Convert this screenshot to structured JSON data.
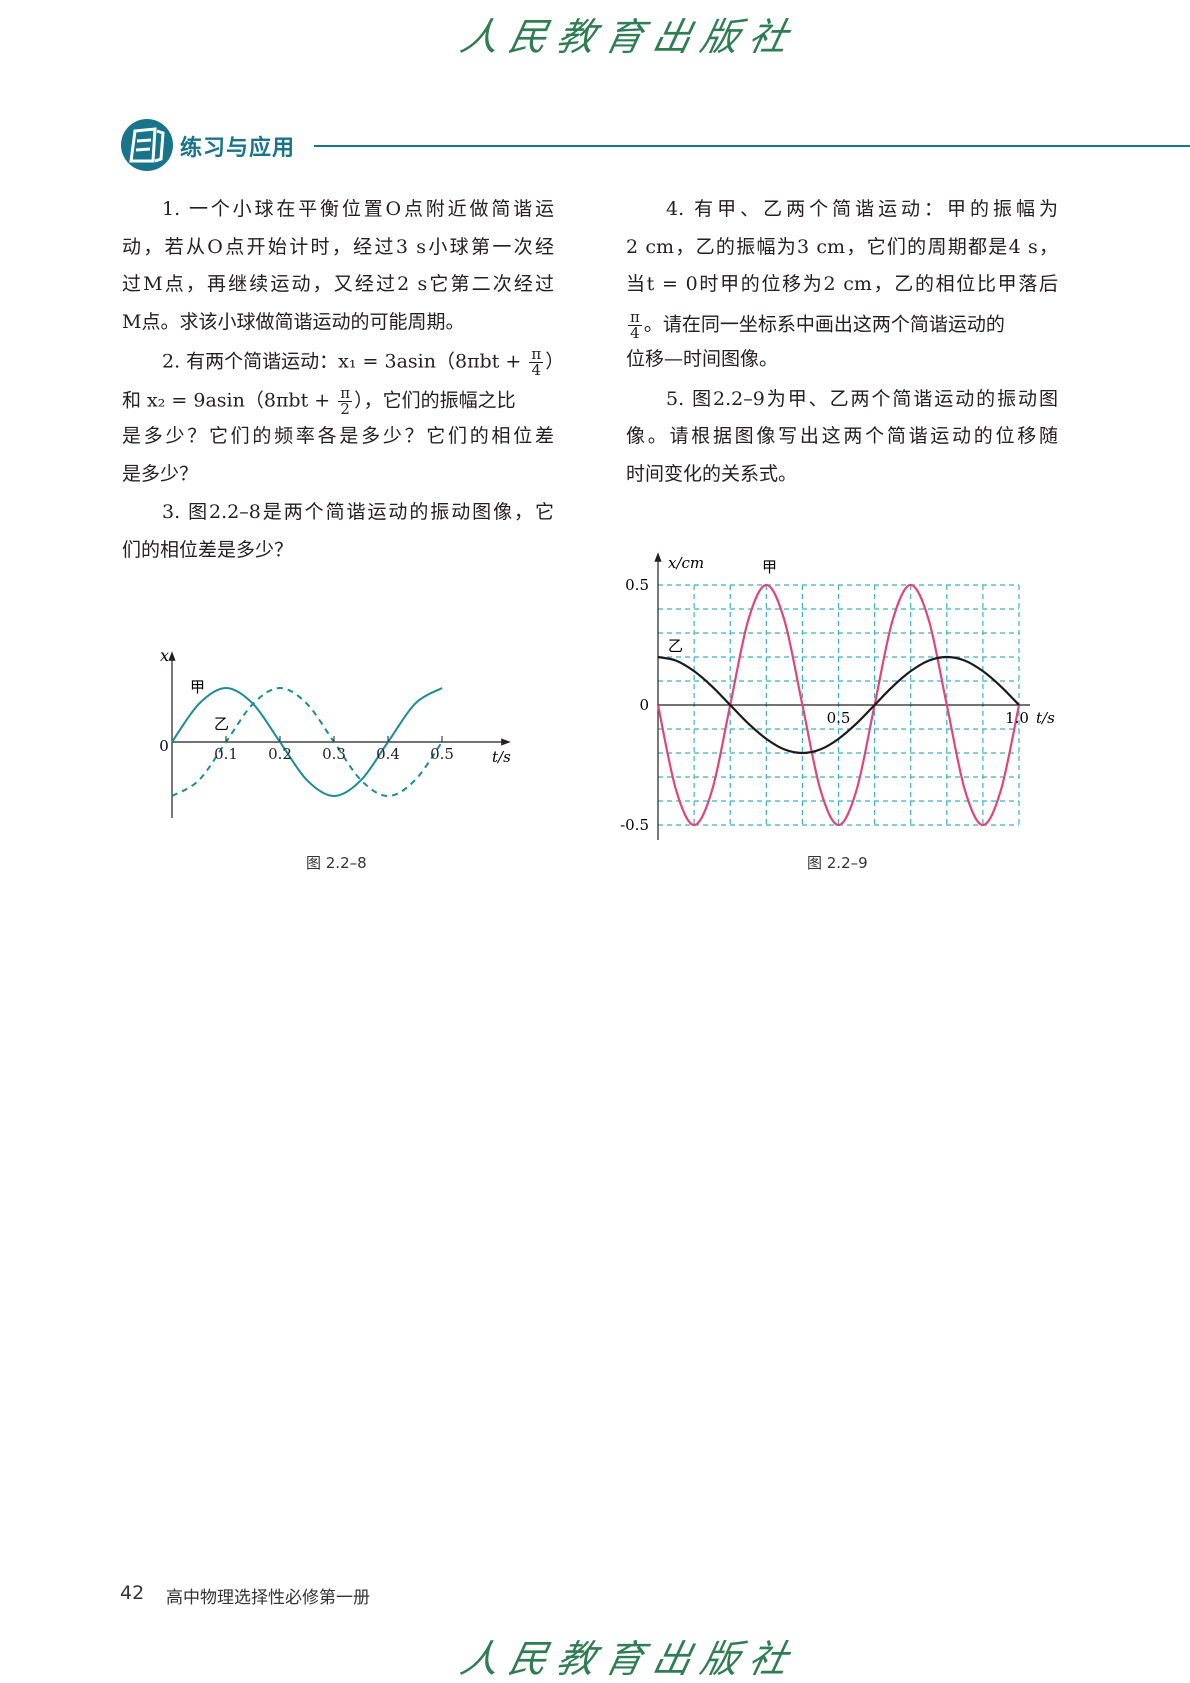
{
  "logo_text": "人民教育出版社",
  "section": {
    "title": "练习与应用",
    "icon": "exercise-book-icon",
    "color": "#17748a"
  },
  "left_lines": [
    {
      "text": "1. 一个小球在平衡位置O点附近做简谐运",
      "indent": true,
      "full": true
    },
    {
      "text": "动，若从O点开始计时，经过3 s小球第一次经",
      "full": true
    },
    {
      "text": "过M点，再继续运动，又经过2 s它第二次经过",
      "full": true
    },
    {
      "text": "M点。求该小球做简谐运动的可能周期。"
    },
    {
      "pre": "2. 有两个简谐运动：x₁ = 3asin（8πbt + ",
      "num": "π",
      "den": "4",
      "post": "）",
      "indent": true
    },
    {
      "pre": "和 x₂ = 9asin（8πbt + ",
      "num": "π",
      "den": "2",
      "post": "），它们的振幅之比"
    },
    {
      "text": "是多少？它们的频率各是多少？它们的相位差",
      "full": true
    },
    {
      "text": "是多少？"
    },
    {
      "text": "3. 图2.2–8是两个简谐运动的振动图像，它",
      "indent": true,
      "full": true
    },
    {
      "text": "们的相位差是多少？"
    }
  ],
  "right_lines": [
    {
      "text": "4. 有甲、乙两个简谐运动：甲的振幅为",
      "indent": true,
      "full": true
    },
    {
      "text": "2 cm，乙的振幅为3 cm，它们的周期都是4 s，",
      "full": true
    },
    {
      "text": "当t = 0时甲的位移为2 cm，乙的相位比甲落后",
      "full": true
    },
    {
      "pre": "",
      "num": "π",
      "den": "4",
      "post": "。请在同一坐标系中画出这两个简谐运动的"
    },
    {
      "text": "位移—时间图像。"
    },
    {
      "text": "5. 图2.2–9为甲、乙两个简谐运动的振动图",
      "indent": true,
      "full": true
    },
    {
      "text": "像。请根据图像写出这两个简谐运动的位移随",
      "full": true
    },
    {
      "text": "时间变化的关系式。"
    }
  ],
  "chart_data": [
    {
      "type": "line",
      "title": "",
      "caption": "图 2.2–8",
      "xlabel": "t/s",
      "ylabel": "x",
      "origin_label": "0",
      "xticks": [
        "0.1",
        "0.2",
        "0.3",
        "0.4",
        "0.5"
      ],
      "xlim": [
        0,
        0.5
      ],
      "ylim": [
        -1,
        1
      ],
      "grid": false,
      "x": [
        0,
        0.05,
        0.1,
        0.15,
        0.2,
        0.25,
        0.3,
        0.35,
        0.4,
        0.45,
        0.5
      ],
      "series": [
        {
          "name": "甲",
          "style": "solid",
          "color": "#1a8c98",
          "values": [
            0,
            0.707,
            1,
            0.707,
            0,
            -0.707,
            -1,
            -0.707,
            0,
            0.707,
            1
          ]
        },
        {
          "name": "乙",
          "style": "dashed",
          "color": "#1a8c98",
          "values": [
            -1,
            -0.707,
            0,
            0.707,
            1,
            0.707,
            0,
            -0.707,
            -1,
            -0.707,
            0
          ]
        }
      ]
    },
    {
      "type": "line",
      "title": "",
      "caption": "图 2.2–9",
      "xlabel": "t/s",
      "ylabel": "x/cm",
      "origin_label": "0",
      "yticks": [
        "0.5",
        "-0.5"
      ],
      "xticks": [
        "0.5",
        "1.0"
      ],
      "xlim": [
        0,
        1.0
      ],
      "ylim": [
        -0.5,
        0.5
      ],
      "grid": true,
      "grid_color": "#3bb3c3",
      "x": [
        0,
        0.05,
        0.1,
        0.15,
        0.2,
        0.25,
        0.3,
        0.35,
        0.4,
        0.45,
        0.5,
        0.55,
        0.6,
        0.65,
        0.7,
        0.75,
        0.8,
        0.85,
        0.9,
        0.95,
        1.0
      ],
      "series": [
        {
          "name": "甲",
          "style": "solid",
          "color": "#e0457b",
          "values": [
            0,
            -0.354,
            -0.5,
            -0.354,
            0,
            0.354,
            0.5,
            0.354,
            0,
            -0.354,
            -0.5,
            -0.354,
            0,
            0.354,
            0.5,
            0.354,
            0,
            -0.354,
            -0.5,
            -0.354,
            0
          ]
        },
        {
          "name": "乙",
          "style": "solid",
          "color": "#1a1a1a",
          "values": [
            0.2,
            0.185,
            0.141,
            0.077,
            0,
            -0.077,
            -0.141,
            -0.185,
            -0.2,
            -0.185,
            -0.141,
            -0.077,
            0,
            0.077,
            0.141,
            0.185,
            0.2,
            0.185,
            0.141,
            0.077,
            0
          ]
        }
      ]
    }
  ],
  "footer": {
    "page_number": "42",
    "book_title": "高中物理选择性必修第一册"
  }
}
